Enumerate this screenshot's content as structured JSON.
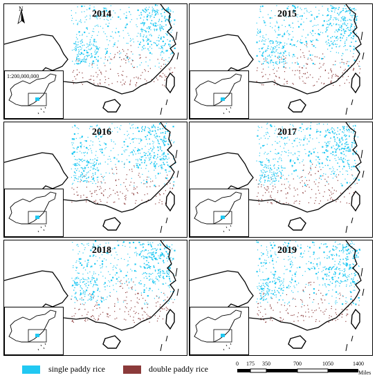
{
  "panels": [
    {
      "year": "2014"
    },
    {
      "year": "2015"
    },
    {
      "year": "2016"
    },
    {
      "year": "2017"
    },
    {
      "year": "2018"
    },
    {
      "year": "2019"
    }
  ],
  "north_label": "N",
  "map_scale": "1:200,000,000",
  "legend": {
    "items": [
      {
        "label": "single paddy rice",
        "color": "#21c8f2"
      },
      {
        "label": "double paddy rice",
        "color": "#8b3a3a"
      }
    ]
  },
  "scalebar": {
    "ticks": [
      "0",
      "175",
      "350",
      "700",
      "1050",
      "1400"
    ],
    "units": "Miles"
  },
  "colors": {
    "single": "#21c8f2",
    "double": "#8b3a3a",
    "outline": "#000000"
  }
}
